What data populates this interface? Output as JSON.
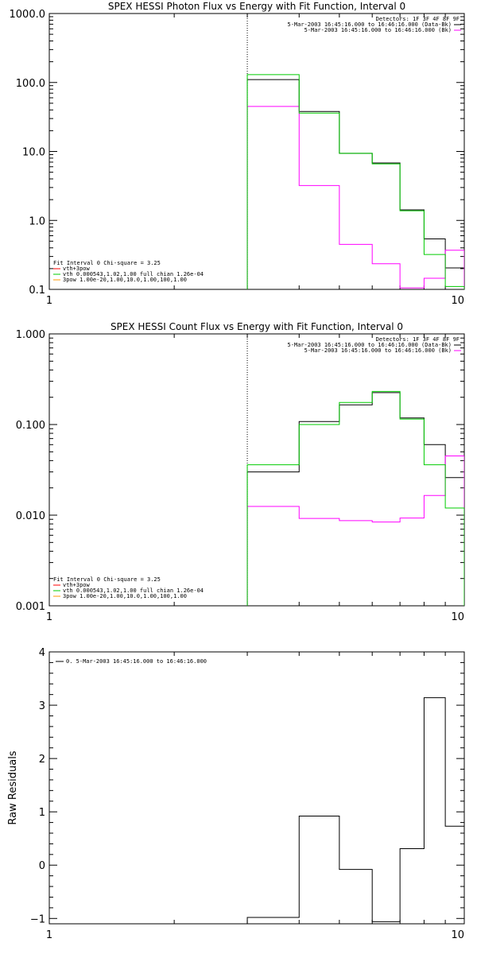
{
  "chart_data": [
    {
      "type": "line",
      "step": true,
      "title": "SPEX HESSI Photon Flux vs Energy with Fit Function, Interval 0",
      "xlabel": "",
      "ylabel": "",
      "xscale": "log",
      "yscale": "log",
      "xlim": [
        1,
        10
      ],
      "ylim": [
        0.1,
        1000
      ],
      "xticks": [
        "1",
        "10"
      ],
      "yticks": [
        "0.1",
        "1.0",
        "10.0",
        "100.0",
        "1000.0"
      ],
      "vline_x": 3.0,
      "bin_edges": [
        3.0,
        4.0,
        5.0,
        6.0,
        7.0,
        8.0,
        9.0,
        10.0
      ],
      "info_lines": [
        "Detectors: 1F 3F 4F 8F 9F",
        "5-Mar-2003 16:45:16.000 to 16:46:16.000 (Data-Bk)",
        "5-Mar-2003 16:45:16.000 to 16:46:16.000 (Bk)"
      ],
      "fit_lines": [
        "Fit Interval 0   Chi-square = 3.25",
        "vth+3pow",
        "vth 0.000543,1.02,1.00  full chian 1.26e-04",
        "3pow 1.00e-20,1.00,10.0,1.00,100,1.00"
      ],
      "series": [
        {
          "name": "5-Mar-2003 16:45:16.000 to 16:46:16.000 (Data-Bk)",
          "color": "#000000",
          "values": [
            110,
            38,
            9.4,
            6.8,
            1.42,
            0.54,
            0.205
          ]
        },
        {
          "name": "5-Mar-2003 16:45:16.000 to 16:46:16.000 (Bk)",
          "color": "#ff00ff",
          "values": [
            45,
            3.2,
            0.45,
            0.235,
            0.105,
            0.145,
            0.37
          ]
        },
        {
          "name": "vth 0.000543,1.02,1.00  full chian 1.26e-04",
          "color": "#00cc00",
          "values": [
            130,
            36,
            9.4,
            6.6,
            1.38,
            0.32,
            0.11
          ]
        }
      ]
    },
    {
      "type": "line",
      "step": true,
      "title": "SPEX HESSI Count Flux vs Energy with Fit Function, Interval 0",
      "xlabel": "",
      "ylabel": "",
      "xscale": "log",
      "yscale": "log",
      "xlim": [
        1,
        10
      ],
      "ylim": [
        0.001,
        1
      ],
      "xticks": [
        "1",
        "10"
      ],
      "yticks": [
        "0.001",
        "0.010",
        "0.100",
        "1.000"
      ],
      "vline_x": 3.0,
      "bin_edges": [
        3.0,
        4.0,
        5.0,
        6.0,
        7.0,
        8.0,
        9.0,
        10.0
      ],
      "info_lines": [
        "Detectors: 1F 3F 4F 8F 9F",
        "5-Mar-2003 16:45:16.000 to 16:46:16.000 (Data-Bk)",
        "5-Mar-2003 16:45:16.000 to 16:46:16.000 (Bk)"
      ],
      "fit_lines": [
        "Fit Interval 0   Chi-square = 3.25",
        "vth+3pow",
        "vth 0.000543,1.02,1.00  full chian 1.26e-04",
        "3pow 1.00e-20,1.00,10.0,1.00,100,1.00"
      ],
      "series": [
        {
          "name": "5-Mar-2003 16:45:16.000 to 16:46:16.000 (Data-Bk)",
          "color": "#000000",
          "values": [
            0.03,
            0.108,
            0.165,
            0.225,
            0.118,
            0.06,
            0.026
          ]
        },
        {
          "name": "5-Mar-2003 16:45:16.000 to 16:46:16.000 (Bk)",
          "color": "#ff00ff",
          "values": [
            0.0125,
            0.0092,
            0.0087,
            0.0084,
            0.0093,
            0.0165,
            0.045
          ]
        },
        {
          "name": "vth 0.000543,1.02,1.00  full chian 1.26e-04",
          "color": "#00cc00",
          "values": [
            0.036,
            0.1,
            0.175,
            0.232,
            0.115,
            0.036,
            0.012
          ]
        }
      ]
    },
    {
      "type": "line",
      "step": true,
      "title": "",
      "xlabel": "",
      "ylabel": "Raw Residuals",
      "xscale": "log",
      "yscale": "linear",
      "xlim": [
        1,
        10
      ],
      "ylim": [
        -1.1,
        4
      ],
      "xticks": [
        "1",
        "10"
      ],
      "yticks": [
        "−1",
        "0",
        "1",
        "2",
        "3",
        "4"
      ],
      "legend": "0. 5-Mar-2003 16:45:16.000 to 16:46:16.000",
      "bin_edges": [
        3.0,
        4.0,
        5.0,
        6.0,
        7.0,
        8.0,
        9.0,
        10.0
      ],
      "series": [
        {
          "name": "0. 5-Mar-2003 16:45:16.000 to 16:46:16.000",
          "color": "#000000",
          "values": [
            -0.98,
            0.92,
            -0.08,
            -1.06,
            0.31,
            3.14,
            0.73
          ]
        }
      ]
    }
  ]
}
